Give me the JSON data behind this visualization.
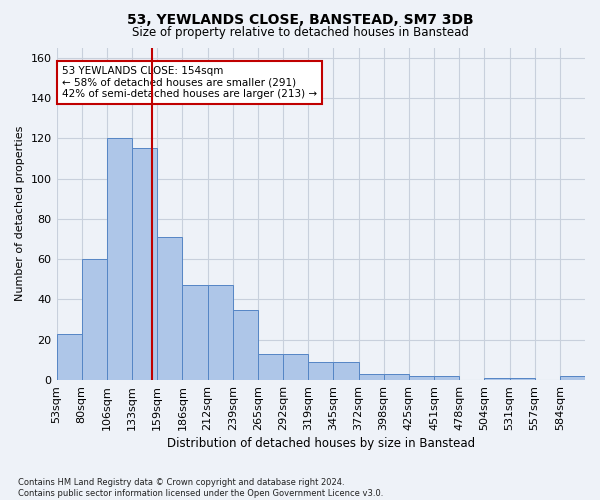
{
  "title_line1": "53, YEWLANDS CLOSE, BANSTEAD, SM7 3DB",
  "title_line2": "Size of property relative to detached houses in Banstead",
  "xlabel": "Distribution of detached houses by size in Banstead",
  "ylabel": "Number of detached properties",
  "footnote": "Contains HM Land Registry data © Crown copyright and database right 2024.\nContains public sector information licensed under the Open Government Licence v3.0.",
  "bin_labels": [
    "53sqm",
    "80sqm",
    "106sqm",
    "133sqm",
    "159sqm",
    "186sqm",
    "212sqm",
    "239sqm",
    "265sqm",
    "292sqm",
    "319sqm",
    "345sqm",
    "372sqm",
    "398sqm",
    "425sqm",
    "451sqm",
    "478sqm",
    "504sqm",
    "531sqm",
    "557sqm",
    "584sqm"
  ],
  "bar_values": [
    23,
    60,
    120,
    115,
    71,
    47,
    47,
    35,
    13,
    13,
    9,
    9,
    3,
    3,
    2,
    2,
    0,
    1,
    1,
    0,
    2
  ],
  "bar_color": "#aec6e8",
  "bar_edge_color": "#5585c5",
  "vline_color": "#c00000",
  "annotation_text": "53 YEWLANDS CLOSE: 154sqm\n← 58% of detached houses are smaller (291)\n42% of semi-detached houses are larger (213) →",
  "annotation_box_color": "white",
  "annotation_box_edge_color": "#c00000",
  "ylim": [
    0,
    165
  ],
  "yticks": [
    0,
    20,
    40,
    60,
    80,
    100,
    120,
    140,
    160
  ],
  "grid_color": "#c8d0dc",
  "bg_color": "#eef2f8"
}
